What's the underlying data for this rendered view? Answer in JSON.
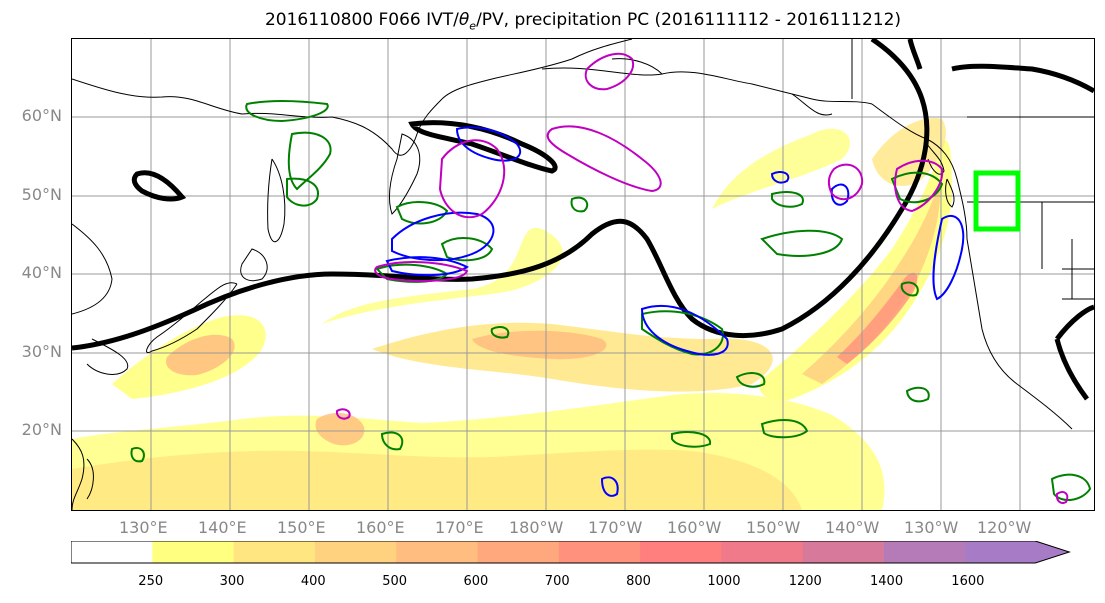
{
  "title": "2016110800 F066 IVT/θe/PV, precipitation PC (2016111112 - 2016111212)",
  "title_parts": {
    "prefix": "2016110800 F066 IVT/",
    "theta": "θ",
    "sub": "e",
    "suffix": "/PV, precipitation PC (2016111112 - 2016111212)"
  },
  "lat_labels": [
    "60°N",
    "50°N",
    "40°N",
    "30°N",
    "20°N"
  ],
  "lon_labels": [
    "130°E",
    "140°E",
    "150°E",
    "160°E",
    "170°E",
    "180°W",
    "170°W",
    "160°W",
    "150°W",
    "140°W",
    "130°W",
    "120°W"
  ],
  "colorbar": {
    "ticks": [
      "250",
      "300",
      "400",
      "500",
      "600",
      "700",
      "800",
      "1000",
      "1200",
      "1400",
      "1600"
    ],
    "colors": [
      "#ffffff",
      "#ffff80",
      "#ffe680",
      "#ffd27f",
      "#ffbd7f",
      "#ffa87e",
      "#ff917d",
      "#ff7f7f",
      "#f07a8a",
      "#d6799b",
      "#b57bb8",
      "#a87bc6"
    ]
  },
  "contour_colors": {
    "ivt_fill_low": "#ffff80",
    "ivt_fill_high": "#f28282",
    "theta_e": "#008000",
    "pv": "#0000ff",
    "precip_pc": "#c000c0",
    "jet": "#000000",
    "highlight_box": "#00ff00"
  }
}
